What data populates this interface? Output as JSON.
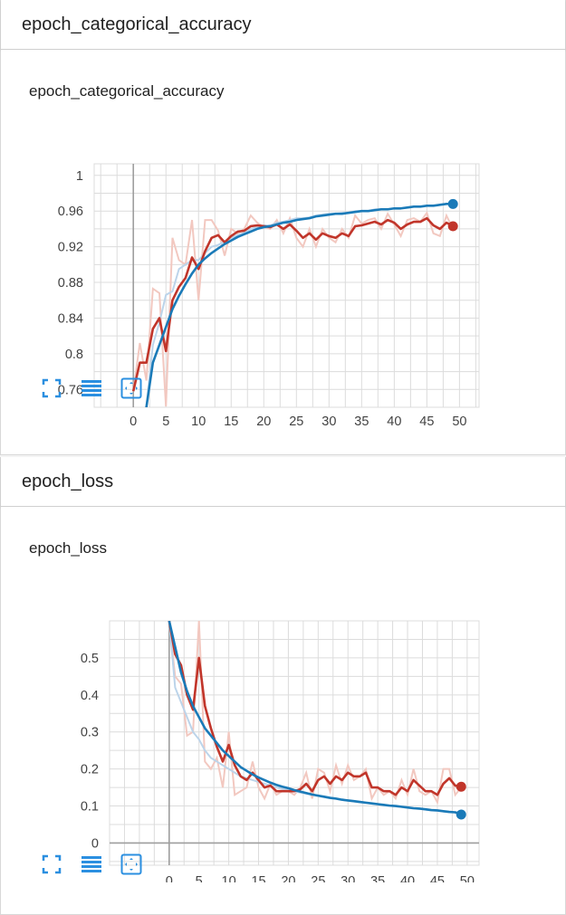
{
  "sections": [
    {
      "header": "epoch_categorical_accuracy",
      "card_title": "epoch_categorical_accuracy"
    },
    {
      "header": "epoch_loss",
      "card_title": "epoch_loss"
    }
  ],
  "toolbar": {
    "icons": [
      "fullscreen-icon",
      "toggle-log-list-icon",
      "fit-domain-icon"
    ]
  },
  "colors": {
    "blue": "#1a7ab8",
    "red": "#c1352a",
    "blue_raw": "#bcd4ea",
    "red_raw": "#f2c8c0",
    "grid": "#dcdcdc",
    "axis": "#9e9e9e"
  },
  "chart_data": [
    {
      "type": "line",
      "title": "epoch_categorical_accuracy",
      "xlim": [
        -6,
        53
      ],
      "ylim": [
        0.74,
        1.013
      ],
      "x_ticks": [
        0,
        5,
        10,
        15,
        20,
        25,
        30,
        35,
        40,
        45,
        50
      ],
      "y_ticks": [
        0.76,
        0.8,
        0.84,
        0.88,
        0.92,
        0.96,
        1
      ],
      "y_tick_labels": [
        "0.76",
        "0.8",
        "0.84",
        "0.88",
        "0.92",
        "0.96",
        "1"
      ],
      "grid": true,
      "series": [
        {
          "color": "#c1352a",
          "x": [
            0,
            1,
            2,
            3,
            4,
            5,
            6,
            7,
            8,
            9,
            10,
            11,
            12,
            13,
            14,
            15,
            16,
            17,
            18,
            19,
            20,
            21,
            22,
            23,
            24,
            25,
            26,
            27,
            28,
            29,
            30,
            31,
            32,
            33,
            34,
            35,
            36,
            37,
            38,
            39,
            40,
            41,
            42,
            43,
            44,
            45,
            46,
            47,
            48,
            49
          ],
          "values": [
            0.758,
            0.79,
            0.79,
            0.828,
            0.84,
            0.803,
            0.86,
            0.875,
            0.885,
            0.908,
            0.895,
            0.915,
            0.93,
            0.933,
            0.925,
            0.932,
            0.937,
            0.938,
            0.943,
            0.944,
            0.943,
            0.942,
            0.945,
            0.94,
            0.945,
            0.938,
            0.93,
            0.935,
            0.928,
            0.935,
            0.932,
            0.93,
            0.935,
            0.932,
            0.943,
            0.944,
            0.946,
            0.948,
            0.945,
            0.95,
            0.947,
            0.94,
            0.945,
            0.948,
            0.948,
            0.952,
            0.944,
            0.94,
            0.947,
            0.943
          ],
          "raw": [
            0.758,
            0.812,
            0.77,
            0.873,
            0.868,
            0.741,
            0.93,
            0.905,
            0.9,
            0.95,
            0.86,
            0.95,
            0.95,
            0.938,
            0.91,
            0.94,
            0.935,
            0.94,
            0.955,
            0.947,
            0.942,
            0.94,
            0.95,
            0.935,
            0.952,
            0.93,
            0.92,
            0.94,
            0.92,
            0.94,
            0.93,
            0.925,
            0.94,
            0.93,
            0.955,
            0.946,
            0.95,
            0.952,
            0.94,
            0.957,
            0.945,
            0.932,
            0.95,
            0.952,
            0.948,
            0.958,
            0.935,
            0.932,
            0.955,
            0.94
          ]
        },
        {
          "color": "#1a7ab8",
          "x": [
            0,
            1,
            2,
            3,
            4,
            5,
            6,
            7,
            8,
            9,
            10,
            11,
            12,
            13,
            14,
            15,
            16,
            17,
            18,
            19,
            20,
            21,
            22,
            23,
            24,
            25,
            26,
            27,
            28,
            29,
            30,
            31,
            32,
            33,
            34,
            35,
            36,
            37,
            38,
            39,
            40,
            41,
            42,
            43,
            44,
            45,
            46,
            47,
            48,
            49
          ],
          "values": [
            0.7,
            0.72,
            0.74,
            0.79,
            0.81,
            0.83,
            0.85,
            0.865,
            0.878,
            0.89,
            0.9,
            0.907,
            0.913,
            0.918,
            0.923,
            0.927,
            0.931,
            0.934,
            0.937,
            0.94,
            0.942,
            0.943,
            0.945,
            0.947,
            0.948,
            0.95,
            0.951,
            0.952,
            0.954,
            0.955,
            0.956,
            0.957,
            0.957,
            0.958,
            0.959,
            0.96,
            0.96,
            0.961,
            0.962,
            0.962,
            0.963,
            0.963,
            0.964,
            0.965,
            0.965,
            0.966,
            0.966,
            0.967,
            0.968,
            0.968
          ],
          "raw": [
            0.7,
            0.72,
            0.74,
            0.81,
            0.835,
            0.866,
            0.87,
            0.895,
            0.9,
            0.905,
            0.905,
            0.913,
            0.92,
            0.922,
            0.926,
            0.93,
            0.933,
            0.936,
            0.94,
            0.942,
            0.944,
            0.944,
            0.947,
            0.948,
            0.95,
            0.952,
            0.952,
            0.953,
            0.955,
            0.956,
            0.957,
            0.957,
            0.958,
            0.958,
            0.96,
            0.96,
            0.96,
            0.962,
            0.962,
            0.962,
            0.963,
            0.963,
            0.964,
            0.965,
            0.965,
            0.966,
            0.966,
            0.967,
            0.968,
            0.968
          ]
        }
      ]
    },
    {
      "type": "line",
      "title": "epoch_loss",
      "xlim": [
        -10,
        52
      ],
      "ylim": [
        -0.06,
        0.6
      ],
      "x_ticks": [
        0,
        5,
        10,
        15,
        20,
        25,
        30,
        35,
        40,
        45,
        50
      ],
      "y_ticks": [
        0,
        0.1,
        0.2,
        0.3,
        0.4,
        0.5
      ],
      "y_tick_labels": [
        "0",
        "0.1",
        "0.2",
        "0.3",
        "0.4",
        "0.5"
      ],
      "grid": true,
      "series": [
        {
          "color": "#c1352a",
          "x": [
            0,
            1,
            2,
            3,
            4,
            5,
            6,
            7,
            8,
            9,
            10,
            11,
            12,
            13,
            14,
            15,
            16,
            17,
            18,
            19,
            20,
            21,
            22,
            23,
            24,
            25,
            26,
            27,
            28,
            29,
            30,
            31,
            32,
            33,
            34,
            35,
            36,
            37,
            38,
            39,
            40,
            41,
            42,
            43,
            44,
            45,
            46,
            47,
            48,
            49
          ],
          "values": [
            0.6,
            0.51,
            0.48,
            0.4,
            0.36,
            0.5,
            0.37,
            0.31,
            0.26,
            0.22,
            0.265,
            0.21,
            0.18,
            0.17,
            0.19,
            0.17,
            0.15,
            0.155,
            0.14,
            0.14,
            0.14,
            0.14,
            0.145,
            0.16,
            0.14,
            0.17,
            0.18,
            0.16,
            0.18,
            0.17,
            0.19,
            0.18,
            0.18,
            0.19,
            0.15,
            0.15,
            0.14,
            0.14,
            0.13,
            0.15,
            0.14,
            0.17,
            0.155,
            0.14,
            0.14,
            0.13,
            0.16,
            0.175,
            0.155,
            0.152
          ],
          "raw": [
            0.6,
            0.45,
            0.43,
            0.29,
            0.3,
            0.6,
            0.22,
            0.2,
            0.23,
            0.15,
            0.3,
            0.13,
            0.14,
            0.15,
            0.22,
            0.15,
            0.12,
            0.16,
            0.13,
            0.14,
            0.14,
            0.13,
            0.15,
            0.19,
            0.12,
            0.2,
            0.19,
            0.14,
            0.21,
            0.16,
            0.21,
            0.17,
            0.18,
            0.2,
            0.12,
            0.15,
            0.13,
            0.14,
            0.12,
            0.17,
            0.13,
            0.2,
            0.14,
            0.13,
            0.14,
            0.11,
            0.2,
            0.2,
            0.13,
            0.15
          ]
        },
        {
          "color": "#1a7ab8",
          "x": [
            0,
            1,
            2,
            3,
            4,
            5,
            6,
            7,
            8,
            9,
            10,
            11,
            12,
            13,
            14,
            15,
            16,
            17,
            18,
            19,
            20,
            21,
            22,
            23,
            24,
            25,
            26,
            27,
            28,
            29,
            30,
            31,
            32,
            33,
            34,
            35,
            36,
            37,
            38,
            39,
            40,
            41,
            42,
            43,
            44,
            45,
            46,
            47,
            48,
            49
          ],
          "values": [
            0.6,
            0.53,
            0.46,
            0.41,
            0.37,
            0.34,
            0.31,
            0.29,
            0.27,
            0.25,
            0.235,
            0.22,
            0.205,
            0.195,
            0.185,
            0.177,
            0.17,
            0.163,
            0.157,
            0.152,
            0.148,
            0.143,
            0.139,
            0.135,
            0.131,
            0.128,
            0.125,
            0.122,
            0.12,
            0.117,
            0.115,
            0.113,
            0.111,
            0.109,
            0.107,
            0.105,
            0.103,
            0.101,
            0.1,
            0.098,
            0.096,
            0.094,
            0.093,
            0.091,
            0.089,
            0.088,
            0.086,
            0.084,
            0.083,
            0.077
          ],
          "raw": [
            0.6,
            0.42,
            0.38,
            0.34,
            0.3,
            0.28,
            0.25,
            0.23,
            0.22,
            0.21,
            0.2,
            0.19,
            0.18,
            0.175,
            0.17,
            0.165,
            0.16,
            0.155,
            0.15,
            0.146,
            0.143,
            0.14,
            0.136,
            0.133,
            0.13,
            0.127,
            0.124,
            0.121,
            0.119,
            0.116,
            0.114,
            0.112,
            0.11,
            0.108,
            0.106,
            0.104,
            0.102,
            0.1,
            0.099,
            0.097,
            0.095,
            0.093,
            0.092,
            0.09,
            0.088,
            0.087,
            0.085,
            0.083,
            0.082,
            0.077
          ]
        }
      ]
    }
  ]
}
